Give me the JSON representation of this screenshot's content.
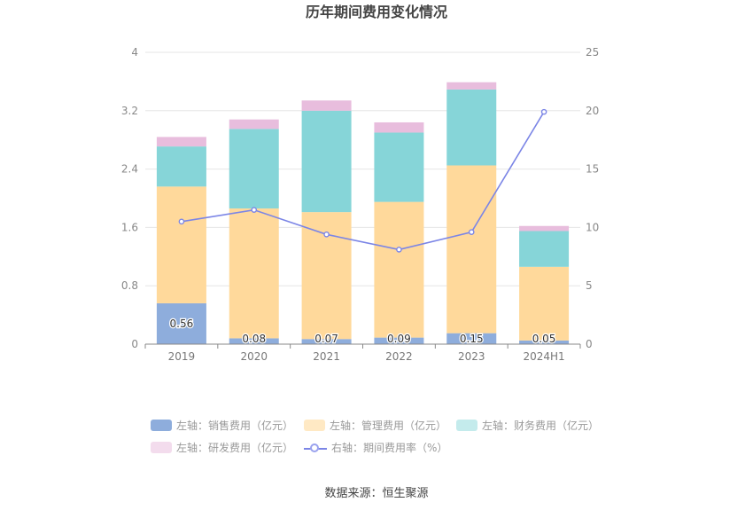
{
  "chart_data": {
    "type": "bar",
    "title": "历年期间费用变化情况",
    "categories": [
      "2019",
      "2020",
      "2021",
      "2022",
      "2023",
      "2024H1"
    ],
    "left_axis": {
      "ylim": [
        0,
        4
      ],
      "ticks": [
        "0",
        "0.8",
        "1.6",
        "2.4",
        "3.2",
        "4"
      ]
    },
    "right_axis": {
      "ylim": [
        0,
        25
      ],
      "ticks": [
        "0",
        "5",
        "10",
        "15",
        "20",
        "25"
      ]
    },
    "grid": true,
    "legend_position": "bottom",
    "series": [
      {
        "name": "左轴：销售费用（亿元）",
        "type": "bar",
        "axis": "left",
        "color": "#8eaddc",
        "values": [
          0.56,
          0.08,
          0.07,
          0.09,
          0.15,
          0.05
        ],
        "labels": [
          "0.56",
          "0.08",
          "0.07",
          "0.09",
          "0.15",
          "0.05"
        ]
      },
      {
        "name": "左轴：管理费用（亿元）",
        "type": "bar",
        "axis": "left",
        "color": "#ffd99b",
        "values": [
          1.6,
          1.78,
          1.74,
          1.86,
          2.3,
          1.01
        ]
      },
      {
        "name": "左轴：财务费用（亿元）",
        "type": "bar",
        "axis": "left",
        "color": "#86d5d8",
        "values": [
          0.55,
          1.09,
          1.39,
          0.95,
          1.04,
          0.49
        ]
      },
      {
        "name": "左轴：研发费用（亿元）",
        "type": "bar",
        "axis": "left",
        "color": "#e8bddd",
        "values": [
          0.13,
          0.13,
          0.14,
          0.14,
          0.1,
          0.07
        ]
      },
      {
        "name": "右轴：期间费用率（%）",
        "type": "line",
        "axis": "right",
        "color": "#7b85e6",
        "values": [
          10.5,
          11.5,
          9.4,
          8.1,
          9.6,
          19.9
        ]
      }
    ]
  },
  "source": "数据来源：恒生聚源"
}
